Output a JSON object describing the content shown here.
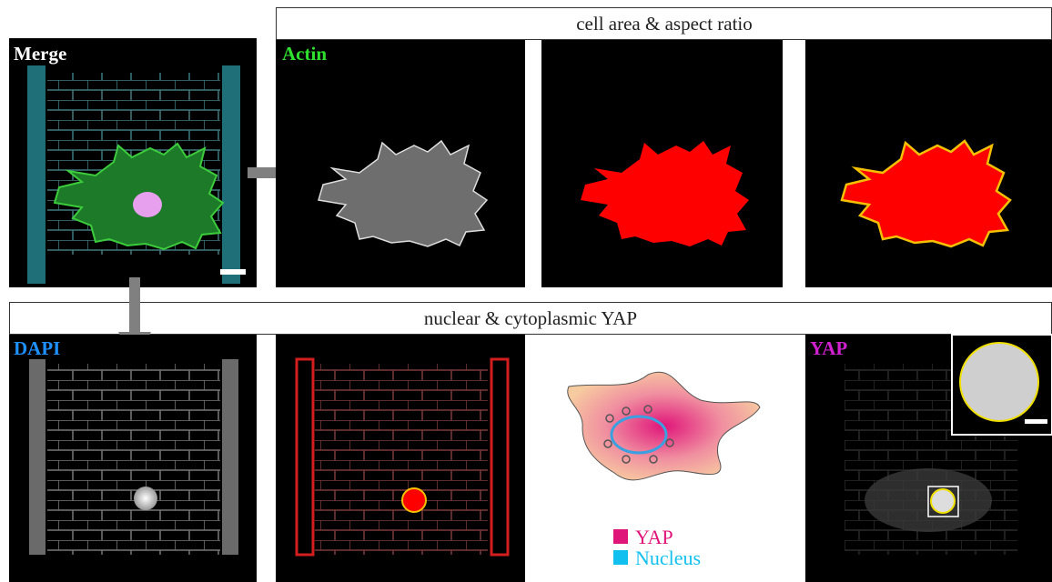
{
  "header_top": "cell area & aspect ratio",
  "header_bottom": "nuclear & cytoplasmic YAP",
  "panels": {
    "merge": "Merge",
    "actin": "Actin",
    "dapi": "DAPI",
    "yap": "YAP"
  },
  "legend": [
    {
      "label": "YAP"
    },
    {
      "label": "Nucleus"
    }
  ]
}
